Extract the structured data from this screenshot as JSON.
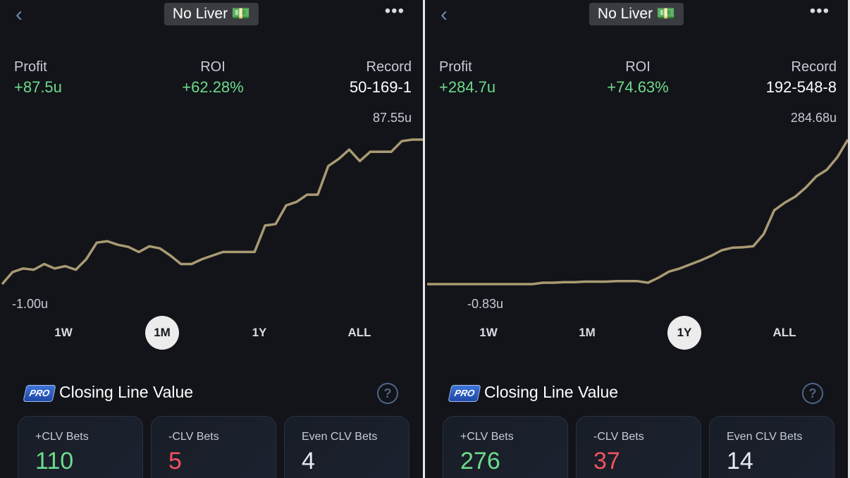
{
  "panels": [
    {
      "header": {
        "title": "No Liver 💵"
      },
      "stats": [
        {
          "label": "Profit",
          "value": "+87.5u"
        },
        {
          "label": "ROI",
          "value": "+62.28%"
        },
        {
          "label": "Record",
          "value": "50-169-1"
        }
      ],
      "chart": {
        "type": "line",
        "max_label": "87.55u",
        "min_label": "-1.00u",
        "values": [
          -1,
          6.4,
          8.6,
          7.8,
          11.3,
          8.6,
          10,
          7.8,
          14.3,
          24.4,
          25.3,
          23.1,
          21.8,
          18.7,
          22.2,
          20.9,
          16.5,
          11.3,
          11.3,
          14.3,
          16.5,
          18.7,
          18.7,
          18.7,
          18.7,
          34.9,
          35.8,
          47.2,
          49.4,
          53.8,
          53.8,
          71.3,
          75.7,
          81.4,
          74.4,
          80.1,
          80.1,
          80.1,
          86.6,
          87.55,
          87.55
        ]
      },
      "periods": [
        "1W",
        "1M",
        "1Y",
        "ALL"
      ],
      "selected_period": 1,
      "clv": {
        "badge": "PRO",
        "title": "Closing Line Value",
        "cards": [
          {
            "label": "+CLV Bets",
            "value": 110
          },
          {
            "label": "-CLV Bets",
            "value": 5
          },
          {
            "label": "Even CLV Bets",
            "value": 4
          }
        ]
      }
    },
    {
      "header": {
        "title": "No Liver 💵"
      },
      "stats": [
        {
          "label": "Profit",
          "value": "+284.7u"
        },
        {
          "label": "ROI",
          "value": "+74.63%"
        },
        {
          "label": "Record",
          "value": "192-548-8"
        }
      ],
      "chart": {
        "type": "line",
        "max_label": "284.68u",
        "min_label": "-0.83u",
        "values": [
          -0.83,
          -0.83,
          -0.83,
          -0.83,
          -0.83,
          -0.83,
          -0.83,
          -0.83,
          -0.83,
          -0.83,
          -0.83,
          2,
          2,
          3,
          3,
          4,
          4,
          4,
          5,
          5,
          5,
          2,
          12,
          24,
          30,
          38,
          46,
          55,
          66,
          71,
          72,
          74,
          98,
          145,
          160,
          172,
          190,
          212,
          225,
          250,
          284.68
        ]
      },
      "periods": [
        "1W",
        "1M",
        "1Y",
        "ALL"
      ],
      "selected_period": 2,
      "clv": {
        "badge": "PRO",
        "title": "Closing Line Value",
        "cards": [
          {
            "label": "+CLV Bets",
            "value": 276
          },
          {
            "label": "-CLV Bets",
            "value": 37
          },
          {
            "label": "Even CLV Bets",
            "value": 14
          }
        ]
      }
    }
  ]
}
